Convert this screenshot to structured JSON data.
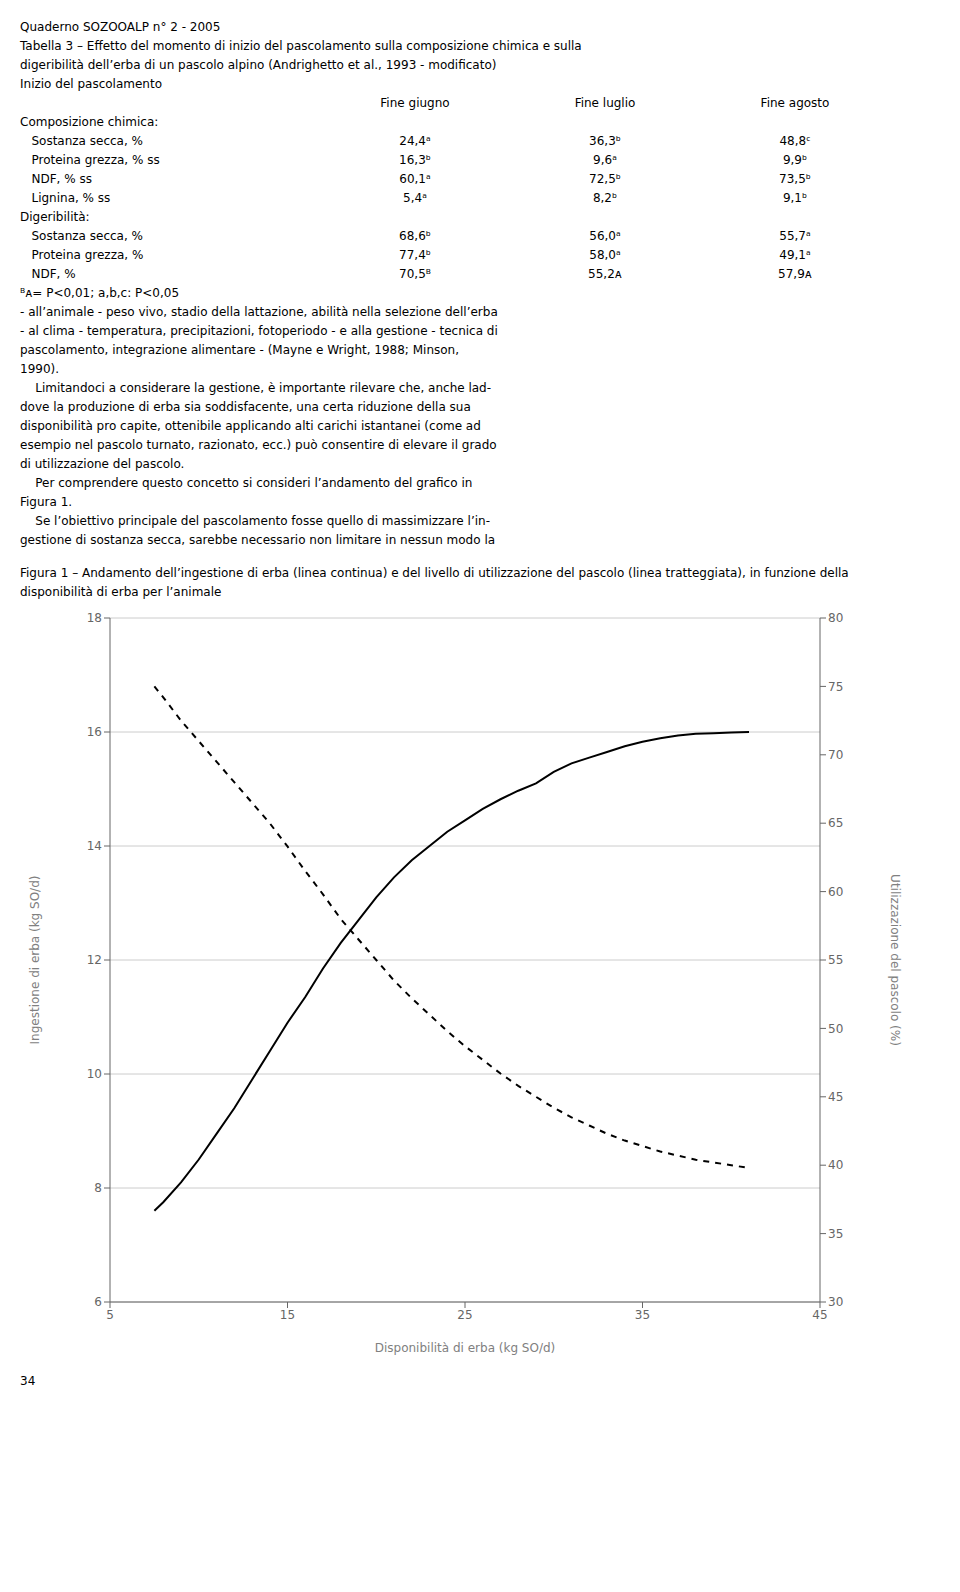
{
  "chart_data": {
    "type": "line",
    "title": "Figura 1 – Andamento dell’ingestione di erba (linea continua) e del livello di utilizzazione del pascolo (linea tratteggiata), in funzione della disponibilità di erba per l’animale",
    "xlabel": "Disponibilità di erba (kg SO/d)",
    "ylabel": "Ingestione di erba (kg SO/d)",
    "y2label": "Utilizzazione del pascolo (%)",
    "x": [
      7.5,
      8,
      9,
      10,
      11,
      12,
      13,
      14,
      15,
      16,
      17,
      18,
      19,
      20,
      21,
      22,
      23,
      24,
      25,
      26,
      27,
      28,
      29,
      30,
      31,
      32,
      33,
      34,
      35,
      36,
      37,
      38,
      39,
      40,
      41
    ],
    "xlim": [
      5,
      45
    ],
    "xticks": [
      5,
      15,
      25,
      35,
      45
    ],
    "ylim": [
      6,
      18
    ],
    "yticks": [
      6,
      8,
      10,
      12,
      14,
      16,
      18
    ],
    "y2lim": [
      30,
      80
    ],
    "y2ticks": [
      30,
      35,
      40,
      45,
      50,
      55,
      60,
      65,
      70,
      75,
      80
    ],
    "grid": "y",
    "series": [
      {
        "color": "#000000",
        "line_style": "solid",
        "values": [
          7.6,
          7.75,
          8.1,
          8.5,
          8.95,
          9.4,
          9.9,
          10.4,
          10.9,
          11.35,
          11.85,
          12.3,
          12.7,
          13.1,
          13.45,
          13.75,
          14.0,
          14.25,
          14.45,
          14.65,
          14.82,
          14.97,
          15.1,
          15.3,
          15.45,
          15.55,
          15.65,
          15.75,
          15.83,
          15.89,
          15.94,
          15.97,
          15.98,
          15.99,
          16.0
        ]
      },
      {
        "color": "#000000",
        "line_style": "dashed",
        "axis": "y2",
        "values": [
          75.0,
          74.2,
          72.5,
          71.0,
          69.5,
          68.0,
          66.5,
          65.0,
          63.3,
          61.5,
          59.8,
          58.0,
          56.5,
          55.0,
          53.5,
          52.2,
          51.0,
          49.8,
          48.7,
          47.7,
          46.7,
          45.8,
          45.0,
          44.2,
          43.5,
          42.9,
          42.3,
          41.8,
          41.4,
          41.0,
          40.7,
          40.4,
          40.2,
          40.0,
          39.8
        ]
      }
    ],
    "annotations": [
      "Quaderno SOZOOALP n° 2 - 2005",
      "Tabella 3 – Effetto del momento di inizio del pascolamento sulla composizione chimica e sulla",
      "digeribilità dell’erba di un pascolo alpino (Andrighetto et al., 1993 - modificato)",
      "Inizio del pascolamento",
      [
        "Fine giugno",
        "Fine luglio",
        "Fine agosto"
      ],
      "Composizione chimica:",
      [
        "   Sostanza secca, %",
        "24,4ᵃ",
        "36,3ᵇ",
        "48,8ᶜ"
      ],
      [
        "   Proteina grezza, % ss",
        "16,3ᵇ",
        "9,6ᵃ",
        "9,9ᵇ"
      ],
      [
        "   NDF, % ss",
        "60,1ᵃ",
        "72,5ᵇ",
        "73,5ᵇ"
      ],
      [
        "   Lignina, % ss",
        "5,4ᵃ",
        "8,2ᵇ",
        "9,1ᵇ"
      ],
      "Digeribilità:",
      [
        "   Sostanza secca, %",
        "68,6ᵇ",
        "56,0ᵃ",
        "55,7ᵃ"
      ],
      [
        "   Proteina grezza, %",
        "77,4ᵇ",
        "58,0ᵃ",
        "49,1ᵃ"
      ],
      [
        "   NDF, %",
        "70,5ᴮ",
        "55,2ᴀ",
        "57,9ᴀ"
      ],
      "ᴮᴀ= P<0,01; a,b,c: P<0,05",
      "- all’animale - peso vivo, stadio della lattazione, abilità nella selezione dell’erba",
      "- al clima - temperatura, precipitazioni, fotoperiodo - e alla gestione - tecnica di",
      "pascolamento, integrazione alimentare - (Mayne e Wright, 1988; Minson,",
      "1990).",
      "    Limitandoci a considerare la gestione, è importante rilevare che, anche lad-",
      "dove la produzione di erba sia soddisfacente, una certa riduzione della sua",
      "disponibilità pro capite, ottenibile applicando alti carichi istantanei (come ad",
      "esempio nel pascolo turnato, razionato, ecc.) può consentire di elevare il grado",
      "di utilizzazione del pascolo.",
      "    Per comprendere questo concetto si consideri l’andamento del grafico in",
      "Figura 1.",
      "    Se l’obiettivo principale del pascolamento fosse quello di massimizzare l’in-",
      "gestione di sostanza secca, sarebbe necessario non limitare in nessun modo la",
      "34"
    ]
  }
}
